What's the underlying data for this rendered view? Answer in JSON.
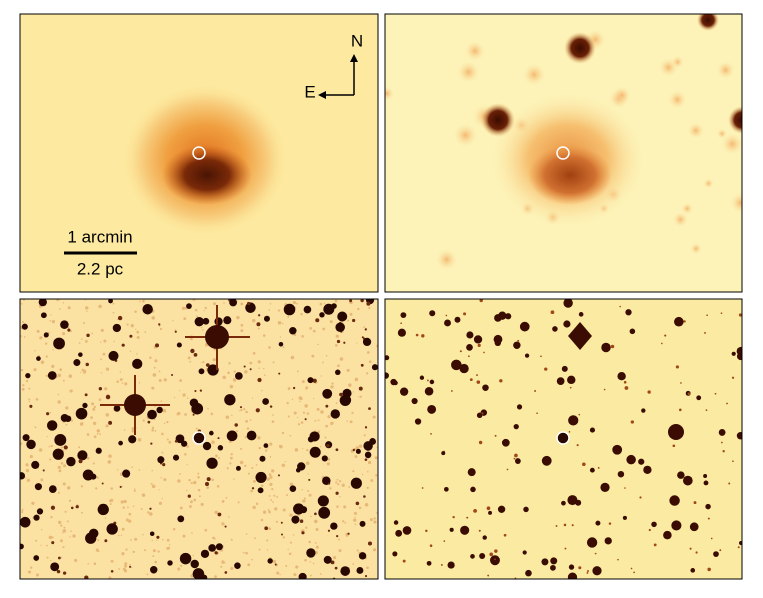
{
  "compass": {
    "north": "N",
    "east": "E"
  },
  "scale_bar": {
    "angular": "1 arcmin",
    "physical": "2.2 pc"
  }
}
